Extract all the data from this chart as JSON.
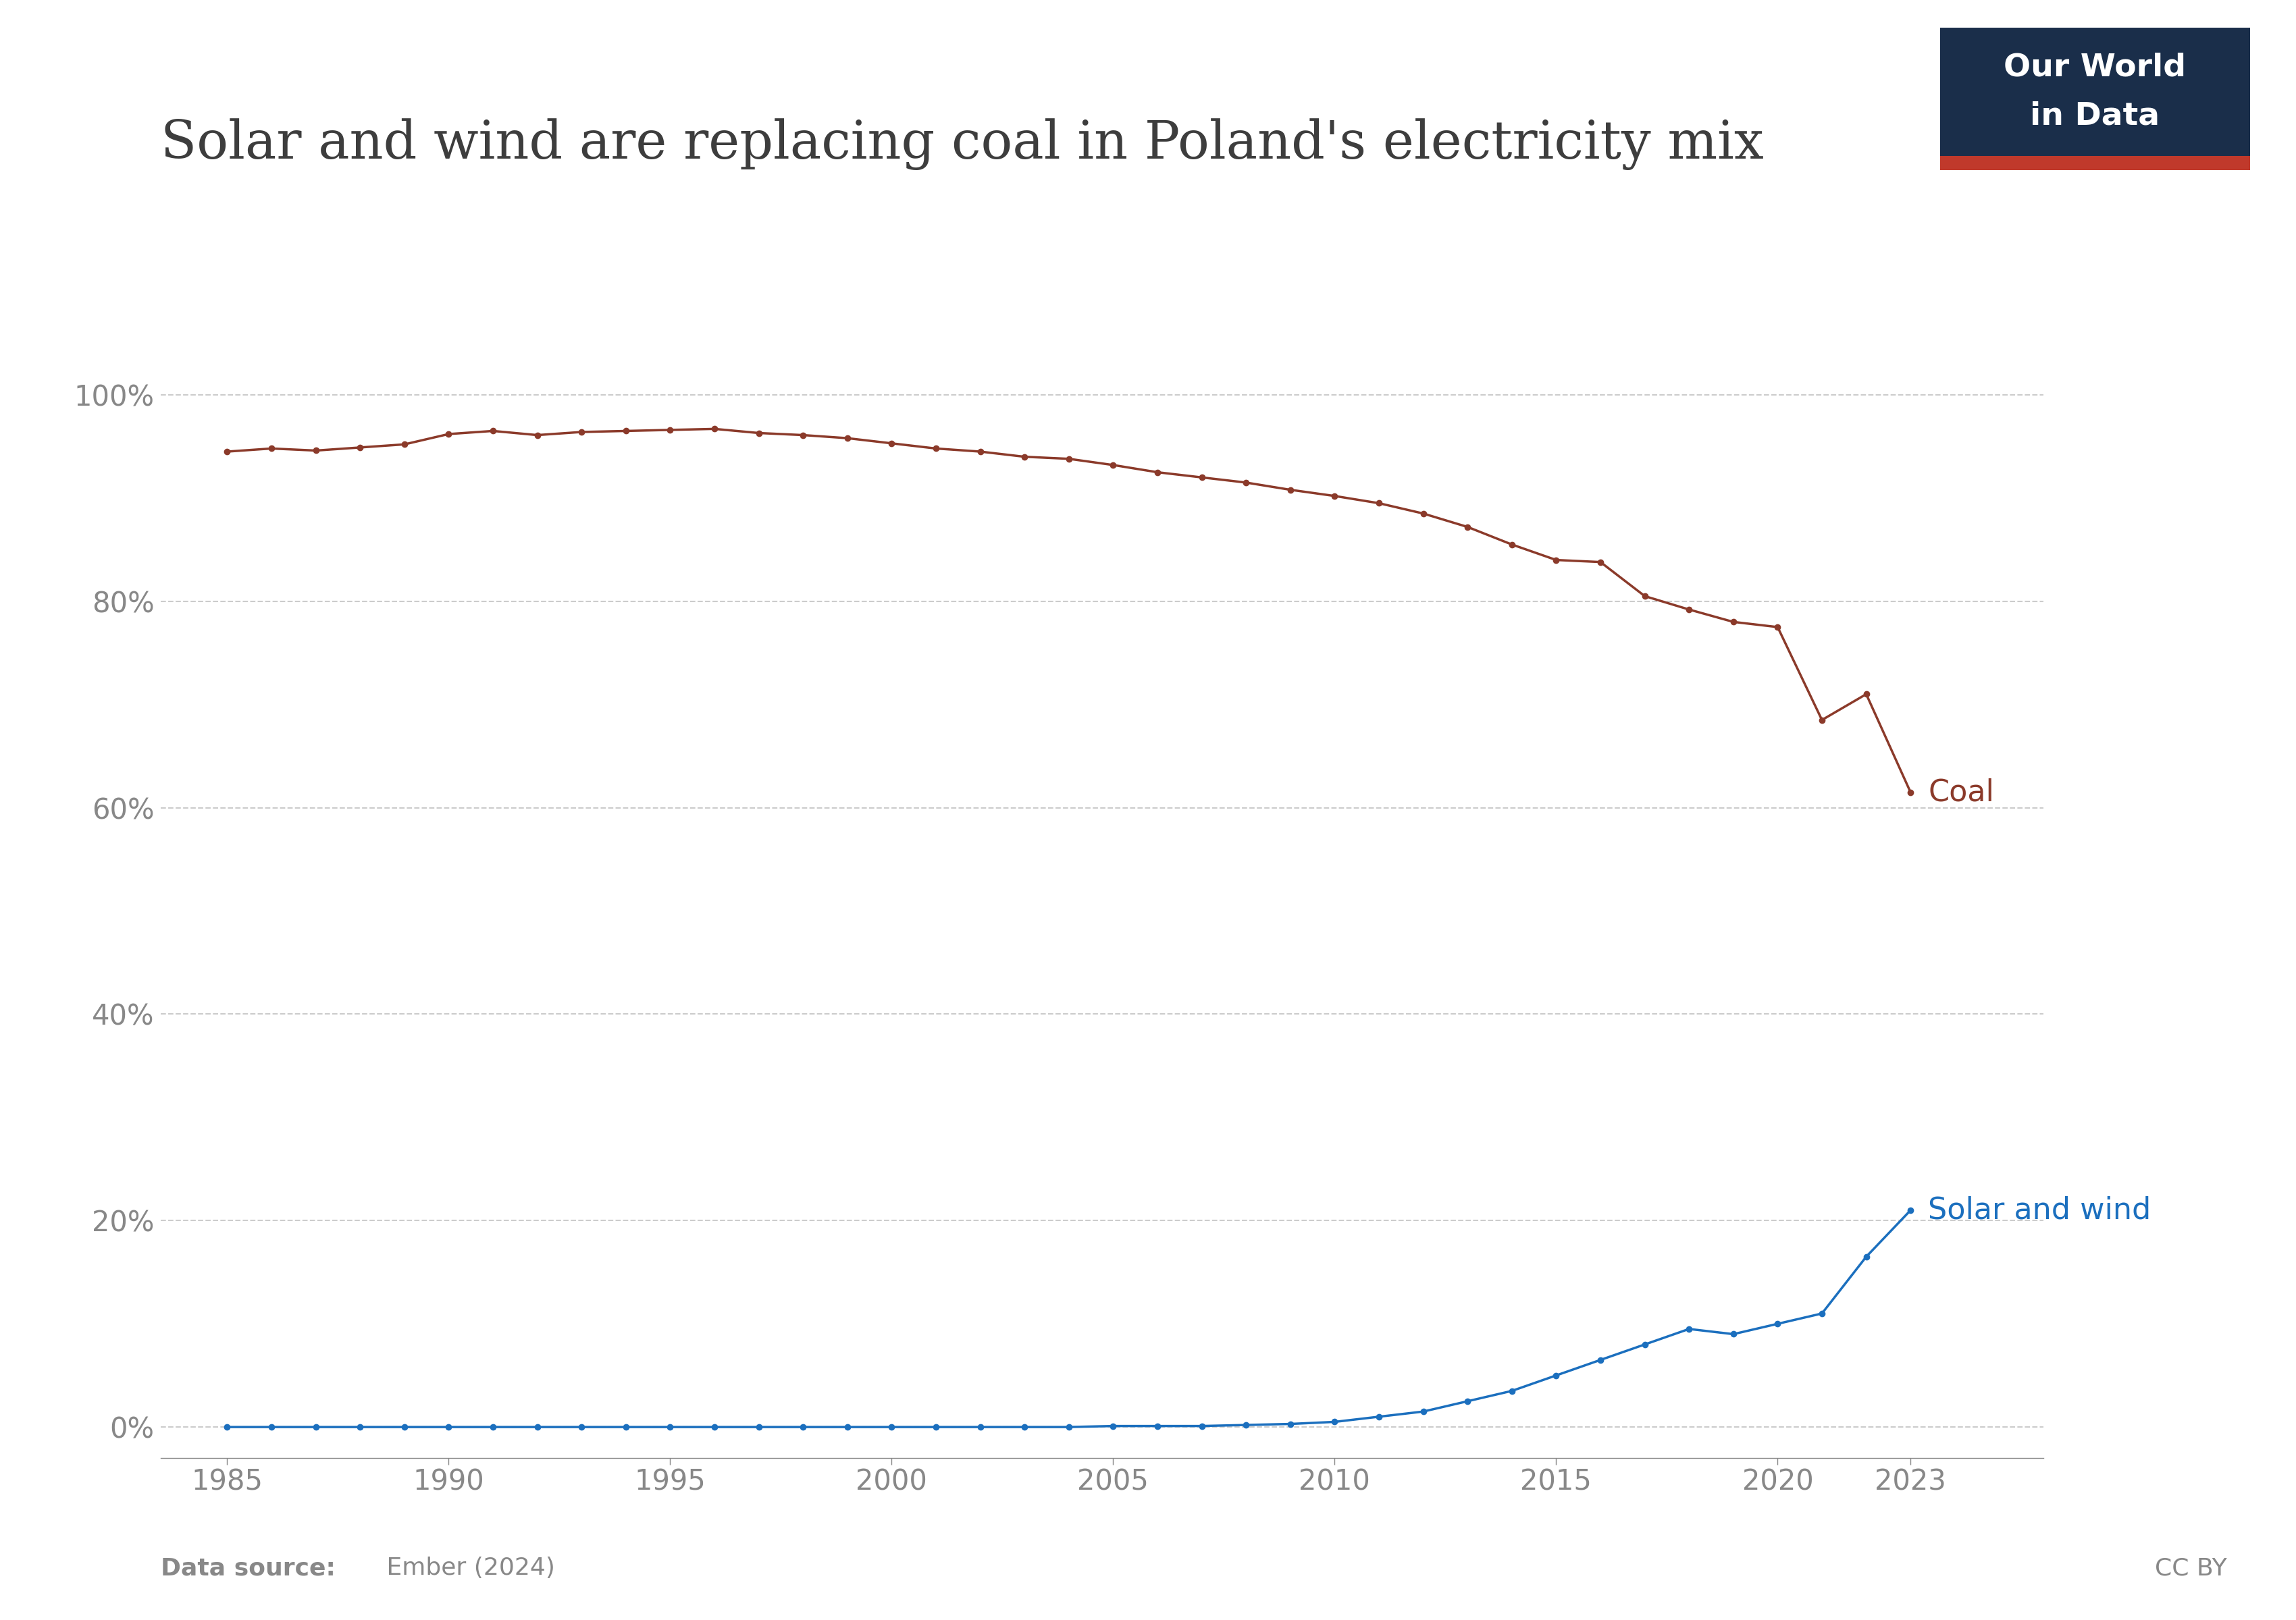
{
  "title": "Solar and wind are replacing coal in Poland's electricity mix",
  "datasource_bold": "Data source:",
  "datasource_normal": " Ember (2024)",
  "cc_by": "CC BY",
  "coal_years": [
    1985,
    1986,
    1987,
    1988,
    1989,
    1990,
    1991,
    1992,
    1993,
    1994,
    1995,
    1996,
    1997,
    1998,
    1999,
    2000,
    2001,
    2002,
    2003,
    2004,
    2005,
    2006,
    2007,
    2008,
    2009,
    2010,
    2011,
    2012,
    2013,
    2014,
    2015,
    2016,
    2017,
    2018,
    2019,
    2020,
    2021,
    2022,
    2023
  ],
  "coal_values": [
    94.5,
    94.8,
    94.6,
    94.9,
    95.2,
    96.2,
    96.5,
    96.1,
    96.4,
    96.5,
    96.6,
    96.7,
    96.3,
    96.1,
    95.8,
    95.3,
    94.8,
    94.5,
    94.0,
    93.8,
    93.2,
    92.5,
    92.0,
    91.5,
    90.8,
    90.2,
    89.5,
    88.5,
    87.2,
    85.5,
    84.0,
    83.8,
    80.5,
    79.2,
    78.0,
    77.5,
    68.5,
    71.0,
    61.5
  ],
  "solar_wind_years": [
    1985,
    1986,
    1987,
    1988,
    1989,
    1990,
    1991,
    1992,
    1993,
    1994,
    1995,
    1996,
    1997,
    1998,
    1999,
    2000,
    2001,
    2002,
    2003,
    2004,
    2005,
    2006,
    2007,
    2008,
    2009,
    2010,
    2011,
    2012,
    2013,
    2014,
    2015,
    2016,
    2017,
    2018,
    2019,
    2020,
    2021,
    2022,
    2023
  ],
  "solar_wind_values": [
    0.0,
    0.0,
    0.0,
    0.0,
    0.0,
    0.0,
    0.0,
    0.0,
    0.0,
    0.0,
    0.0,
    0.0,
    0.0,
    0.0,
    0.0,
    0.0,
    0.0,
    0.0,
    0.0,
    0.0,
    0.1,
    0.1,
    0.1,
    0.2,
    0.3,
    0.5,
    1.0,
    1.5,
    2.5,
    3.5,
    5.0,
    6.5,
    8.0,
    9.5,
    9.0,
    10.0,
    11.0,
    16.5,
    21.0
  ],
  "coal_color": "#8B3A2A",
  "solar_wind_color": "#1B6FBE",
  "coal_label": "Coal",
  "solar_wind_label": "Solar and wind",
  "bg_color": "#ffffff",
  "title_color": "#3d3d3d",
  "axis_color": "#888888",
  "grid_color": "#cccccc",
  "yticks": [
    0,
    20,
    40,
    60,
    80,
    100
  ],
  "ylim": [
    -3,
    110
  ],
  "xlim": [
    1983.5,
    2026
  ],
  "xticks": [
    1985,
    1990,
    1995,
    2000,
    2005,
    2010,
    2015,
    2020,
    2023
  ],
  "owid_box_color": "#1a2e4a",
  "owid_stripe_color": "#c0392b",
  "owid_text_color": "#ffffff",
  "title_fontsize": 56,
  "tick_fontsize": 30,
  "label_fontsize": 32,
  "datasource_fontsize": 26,
  "marker_size": 6
}
